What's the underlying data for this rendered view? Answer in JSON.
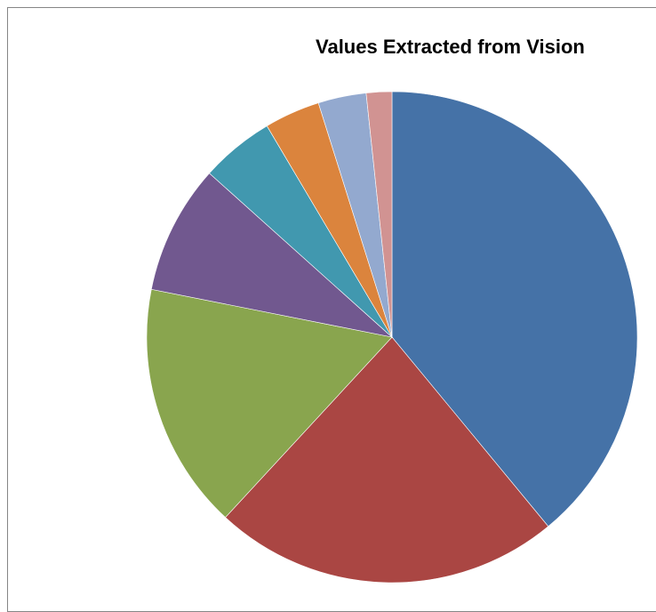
{
  "chart_data": {
    "type": "pie",
    "title": "Values Extracted from Vision",
    "values": [
      39.4,
      23.1,
      16.4,
      8.6,
      4.9,
      3.7,
      3.2,
      1.7
    ],
    "colors": [
      "#4572A7",
      "#AA4643",
      "#89A54E",
      "#71588F",
      "#4198AF",
      "#DB843D",
      "#93A9CF",
      "#D19392"
    ],
    "start_angle_deg": 0,
    "direction": "clockwise",
    "legend": "none"
  }
}
